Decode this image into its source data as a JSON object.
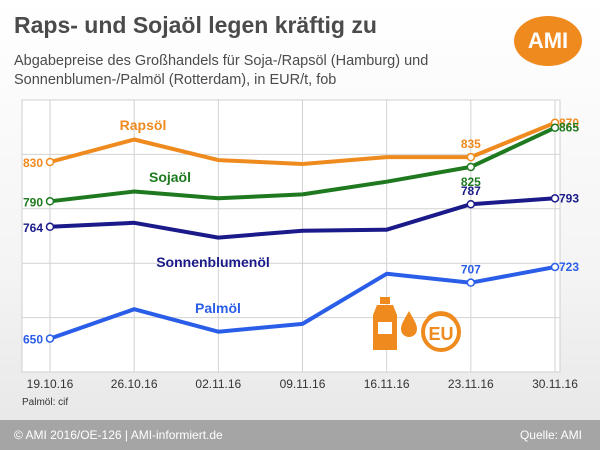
{
  "title": "Raps- und Sojaöl legen kräftig zu",
  "subtitle": "Abgabepreise des Großhandels für Soja-/Rapsöl (Hamburg) und Sonnenblumen-/Palmöl (Rotterdam), in EUR/t, fob",
  "logo": "AMI",
  "note": "Palmöl: cif",
  "footer": {
    "copyright": "© AMI 2016/OE-126 | AMI-informiert.de",
    "source": "Quelle: AMI"
  },
  "icon": {
    "badge_text": "EU",
    "color": "#ef8a1e",
    "names": [
      "bottle-icon",
      "oil-drop-icon",
      "eu-badge-icon"
    ]
  },
  "chart_data": {
    "type": "line",
    "categories": [
      "19.10.16",
      "26.10.16",
      "02.11.16",
      "09.11.16",
      "16.11.16",
      "23.11.16",
      "30.11.16"
    ],
    "ylim": [
      620,
      880
    ],
    "grid": true,
    "series": [
      {
        "name": "Rapsöl",
        "color": "#ef8a1e",
        "values": [
          830,
          853,
          832,
          828,
          835,
          835,
          870
        ],
        "labels": [
          {
            "index": 0,
            "text": "830"
          },
          {
            "index": 5,
            "text": "835"
          },
          {
            "index": 6,
            "text": "870"
          }
        ]
      },
      {
        "name": "Sojaöl",
        "color": "#1f7a1f",
        "values": [
          790,
          800,
          793,
          797,
          810,
          825,
          865
        ],
        "labels": [
          {
            "index": 0,
            "text": "790"
          },
          {
            "index": 5,
            "text": "825"
          },
          {
            "index": 6,
            "text": "865"
          }
        ]
      },
      {
        "name": "Sonnenblumenöl",
        "color": "#1a1a8a",
        "values": [
          764,
          768,
          753,
          760,
          761,
          787,
          793
        ],
        "labels": [
          {
            "index": 0,
            "text": "764"
          },
          {
            "index": 5,
            "text": "787"
          },
          {
            "index": 6,
            "text": "793"
          }
        ]
      },
      {
        "name": "Palmöl",
        "color": "#2a5ee8",
        "values": [
          650,
          680,
          657,
          665,
          716,
          707,
          723
        ],
        "labels": [
          {
            "index": 0,
            "text": "650"
          },
          {
            "index": 5,
            "text": "707"
          },
          {
            "index": 6,
            "text": "723"
          }
        ]
      }
    ]
  }
}
